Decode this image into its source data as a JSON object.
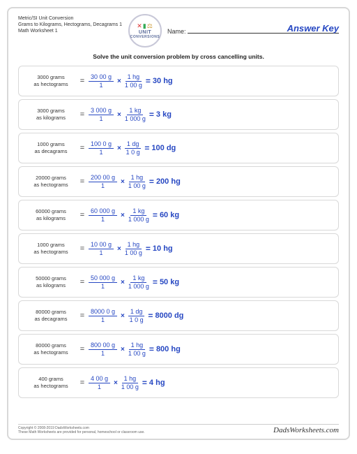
{
  "header": {
    "title1": "Metric/SI Unit Conversion",
    "title2": "Grams to Kilograms, Hectograms, Decagrams 1",
    "title3": "Math Worksheet 1",
    "logo_line1": "UNIT",
    "logo_line2": "CONVERSIONS",
    "name_label": "Name:",
    "answer_key": "Answer Key"
  },
  "instruction": "Solve the unit conversion problem by cross cancelling units.",
  "colors": {
    "accent": "#2647c2",
    "border": "#d8d8d8"
  },
  "rows": [
    {
      "given_val": "3000 grams",
      "given_as": "as hectograms",
      "f1n": "30 00 g",
      "f1d": "1",
      "f2n": "1 hg",
      "f2d": "1 00 g",
      "result": "30 hg"
    },
    {
      "given_val": "3000 grams",
      "given_as": "as kilograms",
      "f1n": "3 000 g",
      "f1d": "1",
      "f2n": "1 kg",
      "f2d": "1 000 g",
      "result": "3 kg"
    },
    {
      "given_val": "1000 grams",
      "given_as": "as decagrams",
      "f1n": "100 0 g",
      "f1d": "1",
      "f2n": "1 dg",
      "f2d": "1 0 g",
      "result": "100 dg"
    },
    {
      "given_val": "20000 grams",
      "given_as": "as hectograms",
      "f1n": "200 00 g",
      "f1d": "1",
      "f2n": "1 hg",
      "f2d": "1 00 g",
      "result": "200 hg"
    },
    {
      "given_val": "60000 grams",
      "given_as": "as kilograms",
      "f1n": "60 000 g",
      "f1d": "1",
      "f2n": "1 kg",
      "f2d": "1 000 g",
      "result": "60 kg"
    },
    {
      "given_val": "1000 grams",
      "given_as": "as hectograms",
      "f1n": "10 00 g",
      "f1d": "1",
      "f2n": "1 hg",
      "f2d": "1 00 g",
      "result": "10 hg"
    },
    {
      "given_val": "50000 grams",
      "given_as": "as kilograms",
      "f1n": "50 000 g",
      "f1d": "1",
      "f2n": "1 kg",
      "f2d": "1 000 g",
      "result": "50 kg"
    },
    {
      "given_val": "80000 grams",
      "given_as": "as decagrams",
      "f1n": "8000 0 g",
      "f1d": "1",
      "f2n": "1 dg",
      "f2d": "1 0 g",
      "result": "8000 dg"
    },
    {
      "given_val": "80000 grams",
      "given_as": "as hectograms",
      "f1n": "800 00 g",
      "f1d": "1",
      "f2n": "1 hg",
      "f2d": "1 00 g",
      "result": "800 hg"
    },
    {
      "given_val": "400 grams",
      "given_as": "as hectograms",
      "f1n": "4 00 g",
      "f1d": "1",
      "f2n": "1 hg",
      "f2d": "1 00 g",
      "result": "4 hg"
    }
  ],
  "footer": {
    "copy1": "Copyright © 2008-2019 DadsWorksheets.com",
    "copy2": "These Math Worksheets are provided for personal, homeschool or classroom use.",
    "brand": "DadsWorksheets.com"
  }
}
